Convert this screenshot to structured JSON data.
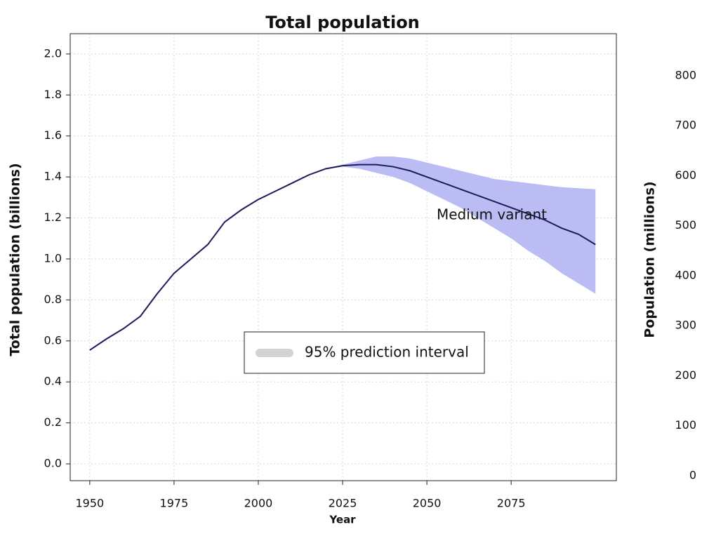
{
  "chart_data": {
    "type": "line",
    "title": "Total population",
    "xlabel": "Year",
    "ylabel": "Total population (billions)",
    "y2label": "Population (millions)",
    "x": [
      1950,
      1955,
      1960,
      1965,
      1970,
      1975,
      1980,
      1985,
      1990,
      1995,
      2000,
      2005,
      2010,
      2015,
      2020,
      2025,
      2030,
      2035,
      2040,
      2045,
      2050,
      2055,
      2060,
      2065,
      2070,
      2075,
      2080,
      2085,
      2090,
      2095,
      2100
    ],
    "series": [
      {
        "name": "Medium variant",
        "color": "#1b1b5c",
        "values": [
          0.555,
          0.61,
          0.66,
          0.72,
          0.83,
          0.93,
          1.0,
          1.07,
          1.18,
          1.24,
          1.29,
          1.33,
          1.37,
          1.41,
          1.44,
          1.455,
          1.46,
          1.46,
          1.45,
          1.43,
          1.4,
          1.37,
          1.34,
          1.31,
          1.28,
          1.25,
          1.22,
          1.19,
          1.15,
          1.12,
          1.07
        ]
      }
    ],
    "band": {
      "name": "95% prediction interval",
      "color": "#bcbcf5",
      "x": [
        2020,
        2025,
        2030,
        2035,
        2040,
        2045,
        2050,
        2055,
        2060,
        2065,
        2070,
        2075,
        2080,
        2085,
        2090,
        2095,
        2100
      ],
      "lower": [
        1.44,
        1.45,
        1.44,
        1.42,
        1.4,
        1.37,
        1.33,
        1.29,
        1.25,
        1.2,
        1.15,
        1.1,
        1.04,
        0.99,
        0.93,
        0.88,
        0.83
      ],
      "upper": [
        1.44,
        1.46,
        1.48,
        1.5,
        1.5,
        1.49,
        1.47,
        1.45,
        1.43,
        1.41,
        1.39,
        1.38,
        1.37,
        1.36,
        1.35,
        1.345,
        1.34
      ]
    },
    "legend_swatch_color": "#d3d3d3",
    "xlim": [
      1944.2,
      2106.2
    ],
    "xticks": [
      1950,
      1975,
      2000,
      2025,
      2050,
      2075
    ],
    "ylim": [
      -0.082,
      2.099
    ],
    "yticks": [
      {
        "value": 0,
        "label": "0.0"
      },
      0.2,
      0.4,
      0.6,
      0.8,
      {
        "value": 1,
        "label": "1.0"
      },
      1.2,
      1.4,
      1.6,
      1.8,
      {
        "value": 2,
        "label": "2.0"
      }
    ],
    "y2lim": [
      -10,
      884
    ],
    "y2ticks": [
      0,
      100,
      200,
      300,
      400,
      500,
      600,
      700,
      800
    ],
    "grid": true
  }
}
